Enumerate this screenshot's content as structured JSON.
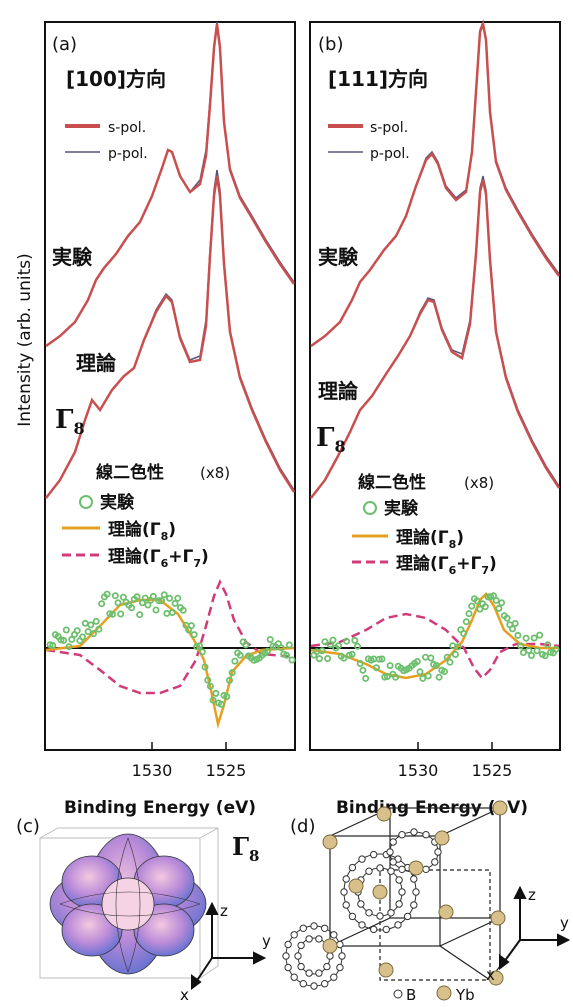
{
  "figure": {
    "y_axis_label": "Intensity (arb. units)",
    "x_axis_label": "Binding Energy (eV)",
    "x_ticks": [
      "1530",
      "1525"
    ],
    "colors": {
      "s_pol": "#c94f4f",
      "p_pol": "#555577",
      "exp_dots": "#6dbf6d",
      "theory_g8": "#e6a020",
      "theory_g67": "#d03c7a",
      "zero_line": "#111111"
    }
  },
  "panel_a": {
    "label": "(a)",
    "direction": "[100]方向",
    "legend": {
      "s_pol": "s-pol.",
      "p_pol": "p-pol."
    },
    "labels": {
      "experiment": "実験",
      "theory": "理論",
      "gamma": "Γ",
      "gamma_sub": "8"
    },
    "lin_dichroism": {
      "title": "線二色性",
      "scale": "(x8)",
      "exp": "実験",
      "theory_g8": "理論(Γ",
      "theory_g8_sub": "8",
      "theory_g8_close": ")",
      "theory_g67": "理論(Γ",
      "theory_g67_sub1": "6",
      "theory_g67_plus": "+Γ",
      "theory_g67_sub2": "7",
      "theory_g67_close": ")"
    }
  },
  "panel_b": {
    "label": "(b)",
    "direction": "[111]方向",
    "legend": {
      "s_pol": "s-pol.",
      "p_pol": "p-pol."
    },
    "labels": {
      "experiment": "実験",
      "theory": "理論",
      "gamma": "Γ",
      "gamma_sub": "8"
    },
    "lin_dichroism": {
      "title": "線二色性",
      "scale": "(x8)",
      "exp": "実験",
      "theory_g8": "理論(Γ",
      "theory_g8_sub": "8",
      "theory_g8_close": ")",
      "theory_g67": "理論(Γ",
      "theory_g67_sub1": "6",
      "theory_g67_plus": "+Γ",
      "theory_g67_sub2": "7",
      "theory_g67_close": ")"
    }
  },
  "panel_c": {
    "label": "(c)",
    "gamma": "Γ",
    "gamma_sub": "8",
    "axes": {
      "x": "x",
      "y": "y",
      "z": "z"
    }
  },
  "panel_d": {
    "label": "(d)",
    "axes": {
      "x": "x",
      "y": "y",
      "z": "z"
    },
    "legend": {
      "boron": "B",
      "ytterbium": "Yb"
    }
  }
}
